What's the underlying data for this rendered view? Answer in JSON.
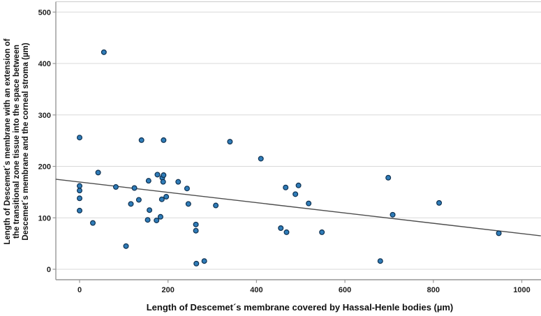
{
  "figure": {
    "background": "#ffffff"
  },
  "chart_data": {
    "type": "scatter",
    "title": "",
    "xlabel": "Length of Descemet´s membrane covered by Hassal-Henle bodies (µm)",
    "ylabel_lines": [
      "Length of Descemet´s membrane with an extension of",
      "the transitional zone tissue into the space between",
      "Descemet´s membrane and the corneal stroma (µm)"
    ],
    "x_ticks": [
      0,
      200,
      400,
      600,
      800,
      1000
    ],
    "y_ticks": [
      0,
      100,
      200,
      300,
      400,
      500
    ],
    "xlim": [
      -54,
      1043
    ],
    "ylim": [
      -20,
      520
    ],
    "grid": "horizontal",
    "legend": "none",
    "points": [
      [
        0,
        256
      ],
      [
        0,
        162
      ],
      [
        0,
        153
      ],
      [
        0,
        138
      ],
      [
        0,
        114
      ],
      [
        30,
        90
      ],
      [
        42,
        188
      ],
      [
        55,
        422
      ],
      [
        105,
        45
      ],
      [
        82,
        160
      ],
      [
        116,
        127
      ],
      [
        124,
        158
      ],
      [
        134,
        135
      ],
      [
        140,
        251
      ],
      [
        190,
        251
      ],
      [
        156,
        172
      ],
      [
        176,
        184
      ],
      [
        187,
        178
      ],
      [
        190,
        183
      ],
      [
        189,
        170
      ],
      [
        158,
        115
      ],
      [
        154,
        96
      ],
      [
        174,
        95
      ],
      [
        183,
        102
      ],
      [
        186,
        136
      ],
      [
        196,
        141
      ],
      [
        223,
        170
      ],
      [
        243,
        157
      ],
      [
        246,
        127
      ],
      [
        263,
        87
      ],
      [
        263,
        75
      ],
      [
        264,
        11
      ],
      [
        282,
        16
      ],
      [
        308,
        124
      ],
      [
        340,
        248
      ],
      [
        410,
        215
      ],
      [
        455,
        80
      ],
      [
        468,
        72
      ],
      [
        466,
        159
      ],
      [
        488,
        146
      ],
      [
        495,
        163
      ],
      [
        518,
        128
      ],
      [
        548,
        72
      ],
      [
        680,
        16
      ],
      [
        698,
        178
      ],
      [
        708,
        106
      ],
      [
        813,
        129
      ],
      [
        948,
        70
      ]
    ],
    "fit_line": {
      "x1": -54,
      "y1": 175,
      "x2": 1043,
      "y2": 65
    },
    "colors": {
      "point_fill": "#2f7cb8",
      "point_stroke": "#0e3050",
      "fit_line": "#4d4d4d",
      "grid": "#d9d9d9",
      "frame_top": "#cccccc",
      "axis": "#969696",
      "text": "#1d1d1d"
    }
  }
}
